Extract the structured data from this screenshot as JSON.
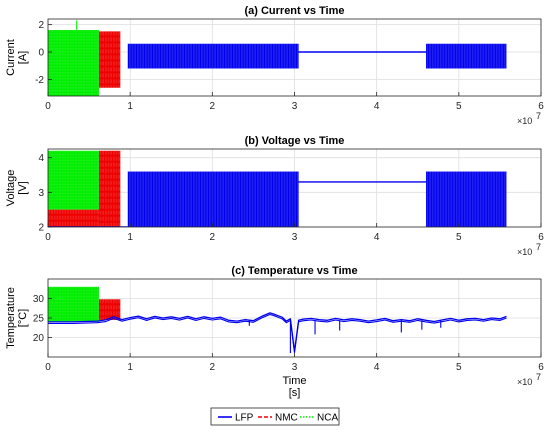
{
  "chart_data": [
    {
      "type": "line",
      "title": "(a) Current vs Time",
      "ylabel": [
        "Current",
        "[A]"
      ],
      "xlabel": [],
      "xlim": [
        0,
        6
      ],
      "x_ticks": [
        "0",
        "1",
        "2",
        "3",
        "4",
        "5",
        "6"
      ],
      "x_multiplier": "10^7",
      "ylim": [
        -3.2,
        2.4
      ],
      "y_ticks": [
        -2,
        0,
        2
      ],
      "grid": true,
      "series": [
        {
          "name": "NCA",
          "color": "#00ee00",
          "style": "dotted",
          "bands": [
            {
              "x": [
                0.0,
                0.62
              ],
              "y": [
                -3.2,
                1.6
              ]
            }
          ],
          "lines": [],
          "spikes": [
            {
              "x": 0.35,
              "y": 2.3
            }
          ]
        },
        {
          "name": "NMC",
          "color": "#ee0000",
          "style": "dashed",
          "bands": [
            {
              "x": [
                0.62,
                0.88
              ],
              "y": [
                -2.6,
                1.5
              ]
            }
          ],
          "lines": []
        },
        {
          "name": "LFP",
          "color": "#0000ee",
          "style": "solid",
          "bands": [
            {
              "x": [
                0.97,
                3.05
              ],
              "y": [
                -1.2,
                0.6
              ]
            },
            {
              "x": [
                4.6,
                5.58
              ],
              "y": [
                -1.2,
                0.6
              ]
            }
          ],
          "lines": [
            {
              "x": [
                3.05,
                4.6
              ],
              "y": 0.0
            }
          ]
        }
      ]
    },
    {
      "type": "line",
      "title": "(b) Voltage vs Time",
      "ylabel": [
        "Voltage",
        "[V]"
      ],
      "xlabel": [],
      "xlim": [
        0,
        6
      ],
      "x_ticks": [
        "0",
        "1",
        "2",
        "3",
        "4",
        "5",
        "6"
      ],
      "x_multiplier": "10^7",
      "ylim": [
        2.0,
        4.25
      ],
      "y_ticks": [
        2,
        3,
        4
      ],
      "grid": true,
      "series": [
        {
          "name": "NCA",
          "color": "#00ee00",
          "style": "dotted",
          "bands": [
            {
              "x": [
                0.0,
                0.62
              ],
              "y": [
                2.5,
                4.2
              ]
            }
          ],
          "lines": []
        },
        {
          "name": "NMC",
          "color": "#ee0000",
          "style": "dashed",
          "bands": [
            {
              "x": [
                0.0,
                0.62
              ],
              "y": [
                2.0,
                2.5
              ]
            },
            {
              "x": [
                0.62,
                0.88
              ],
              "y": [
                2.0,
                4.2
              ]
            }
          ],
          "lines": []
        },
        {
          "name": "LFP",
          "color": "#0000ee",
          "style": "solid",
          "bands": [
            {
              "x": [
                0.97,
                3.05
              ],
              "y": [
                2.0,
                3.6
              ]
            },
            {
              "x": [
                4.6,
                5.58
              ],
              "y": [
                2.0,
                3.6
              ]
            }
          ],
          "lines": [
            {
              "x": [
                3.05,
                4.6
              ],
              "y": 3.3
            },
            {
              "x": [
                0.0,
                0.97
              ],
              "y": 2.0
            }
          ]
        }
      ]
    },
    {
      "type": "line",
      "title": "(c) Temperature vs Time",
      "ylabel": [
        "Temperature",
        "[°C]"
      ],
      "xlabel": [
        "Time",
        "[s]"
      ],
      "xlim": [
        0,
        6
      ],
      "x_ticks": [
        "0",
        "1",
        "2",
        "3",
        "4",
        "5",
        "6"
      ],
      "x_multiplier": "10^7",
      "ylim": [
        15,
        35
      ],
      "y_ticks": [
        20,
        25,
        30
      ],
      "grid": true,
      "series": [
        {
          "name": "NCA",
          "color": "#00ee00",
          "style": "dotted",
          "bands": [
            {
              "x": [
                0.0,
                0.62
              ],
              "y": [
                24.0,
                33.0
              ]
            }
          ],
          "lines": []
        },
        {
          "name": "NMC",
          "color": "#ee0000",
          "style": "dashed",
          "bands": [
            {
              "x": [
                0.62,
                0.88
              ],
              "y": [
                24.5,
                29.8
              ]
            }
          ],
          "lines": []
        },
        {
          "name": "LFP",
          "color": "#0000ee",
          "style": "solid",
          "bands": [],
          "lines": [],
          "polyline": {
            "x": [
              0.0,
              0.3,
              0.6,
              0.7,
              0.8,
              0.9,
              1.0,
              1.1,
              1.2,
              1.3,
              1.4,
              1.5,
              1.6,
              1.7,
              1.8,
              1.9,
              2.0,
              2.1,
              2.2,
              2.3,
              2.4,
              2.5,
              2.6,
              2.7,
              2.75,
              2.8,
              2.85,
              2.9,
              2.95,
              3.0,
              3.05,
              3.1,
              3.2,
              3.3,
              3.4,
              3.5,
              3.6,
              3.7,
              3.8,
              3.9,
              4.0,
              4.1,
              4.2,
              4.3,
              4.4,
              4.5,
              4.6,
              4.7,
              4.8,
              4.9,
              5.0,
              5.1,
              5.2,
              5.3,
              5.4,
              5.5,
              5.58
            ],
            "y": [
              24.0,
              24.0,
              24.2,
              24.5,
              25.3,
              24.6,
              25.1,
              25.5,
              24.8,
              25.4,
              25.0,
              25.3,
              24.9,
              25.4,
              24.8,
              25.3,
              24.9,
              25.2,
              24.4,
              24.2,
              24.6,
              24.3,
              25.4,
              26.3,
              26.0,
              25.6,
              25.2,
              24.2,
              24.8,
              16.5,
              24.4,
              24.7,
              24.9,
              24.6,
              24.4,
              24.9,
              24.5,
              24.8,
              24.6,
              24.2,
              24.5,
              24.9,
              24.3,
              24.6,
              24.3,
              24.8,
              24.4,
              24.1,
              24.5,
              24.9,
              24.4,
              24.8,
              24.9,
              24.6,
              25.0,
              24.8,
              25.4
            ]
          },
          "spikes": [
            {
              "x": 2.95,
              "y": 16.0
            },
            {
              "x": 3.25,
              "y": 20.8
            },
            {
              "x": 4.3,
              "y": 21.3
            },
            {
              "x": 4.78,
              "y": 22.5
            },
            {
              "x": 4.55,
              "y": 22.0
            },
            {
              "x": 3.55,
              "y": 21.8
            },
            {
              "x": 2.45,
              "y": 23.0
            }
          ]
        }
      ]
    }
  ],
  "legend": {
    "placement": "bottom-center",
    "entries": [
      {
        "label": "LFP",
        "color": "#0000ee",
        "style": "solid"
      },
      {
        "label": "NMC",
        "color": "#ee0000",
        "style": "dashed"
      },
      {
        "label": "NCA",
        "color": "#00ee00",
        "style": "dotted"
      }
    ]
  }
}
